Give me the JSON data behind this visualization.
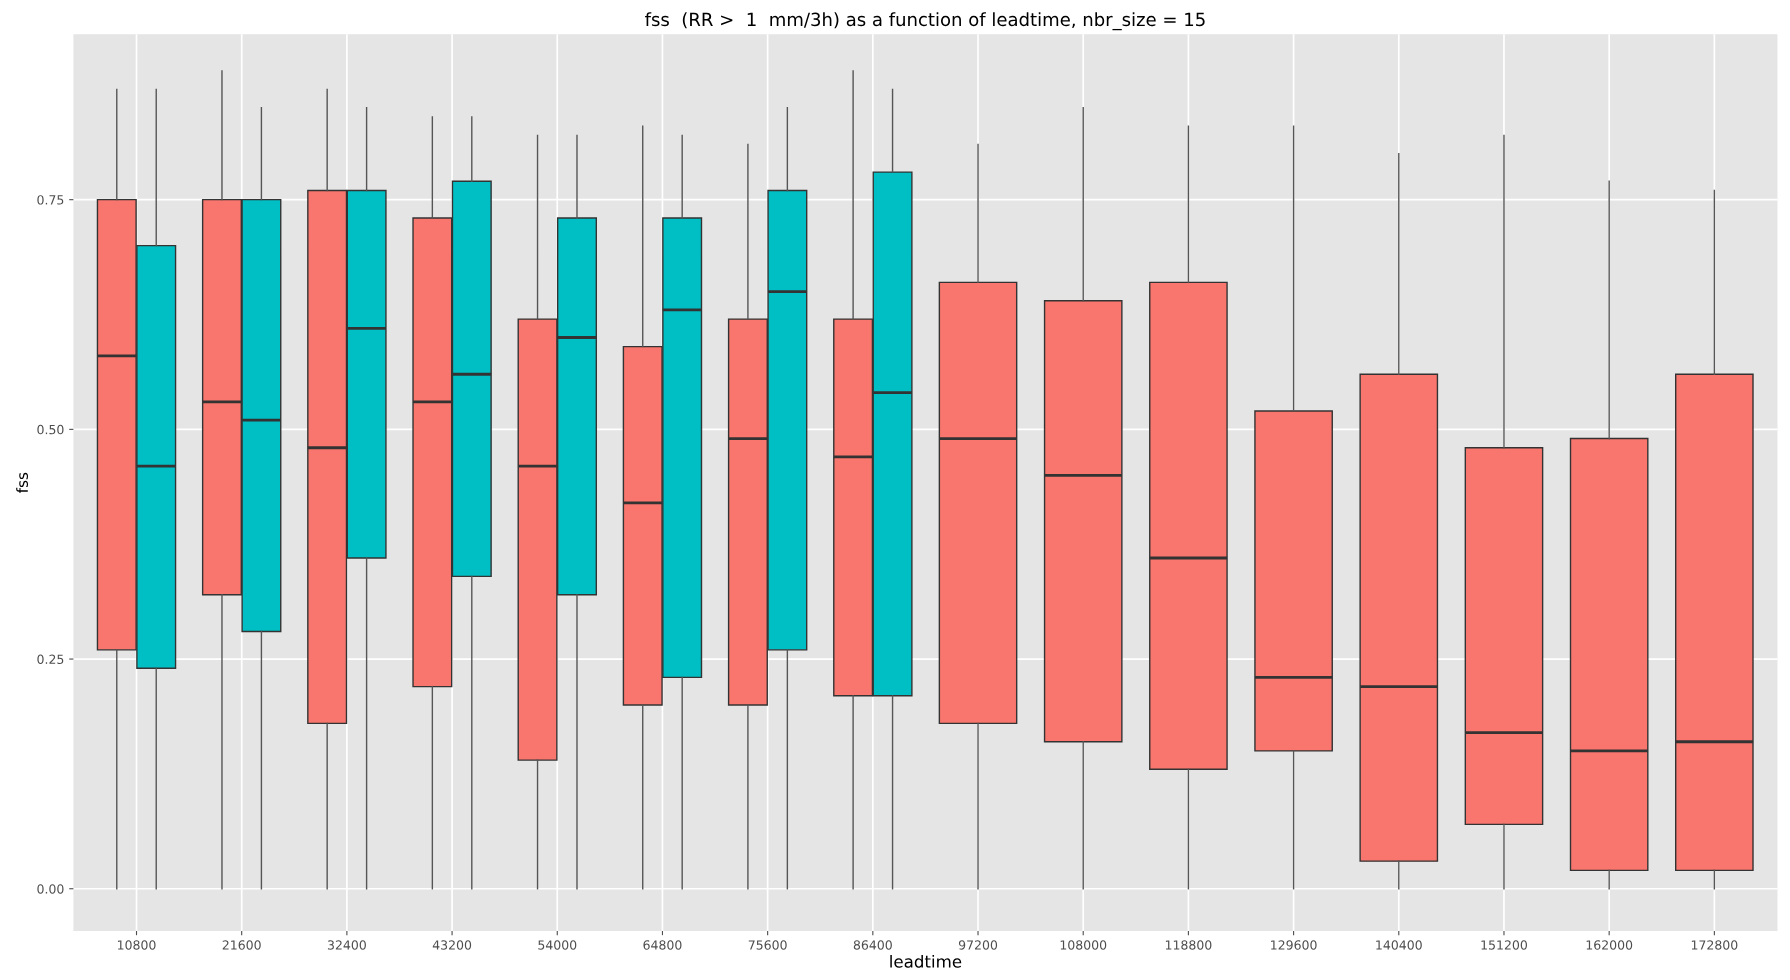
{
  "chart_data": {
    "type": "box",
    "title": "fss  (RR >  1  mm/3h) as a function of leadtime, nbr_size = 15",
    "xlabel": "leadtime",
    "ylabel": "fss",
    "categories": [
      "10800",
      "21600",
      "32400",
      "43200",
      "54000",
      "64800",
      "75600",
      "86400",
      "97200",
      "108000",
      "118800",
      "129600",
      "140400",
      "151200",
      "162000",
      "172800"
    ],
    "ylim": [
      -0.046,
      0.93
    ],
    "yticks": [
      {
        "value": 0,
        "label": "0.00"
      },
      {
        "value": 0.25,
        "label": "0.25"
      },
      {
        "value": 0.5,
        "label": "0.50"
      },
      {
        "value": 0.75,
        "label": "0.75"
      }
    ],
    "grid": true,
    "legend": false,
    "series": [
      {
        "color": "#f8766d",
        "boxes": [
          {
            "low": 0,
            "q1": 0.26,
            "median": 0.58,
            "q3": 0.75,
            "high": 0.87
          },
          {
            "low": 0,
            "q1": 0.32,
            "median": 0.53,
            "q3": 0.75,
            "high": 0.89
          },
          {
            "low": 0,
            "q1": 0.18,
            "median": 0.48,
            "q3": 0.76,
            "high": 0.87
          },
          {
            "low": 0,
            "q1": 0.22,
            "median": 0.53,
            "q3": 0.73,
            "high": 0.84
          },
          {
            "low": 0,
            "q1": 0.14,
            "median": 0.46,
            "q3": 0.62,
            "high": 0.82
          },
          {
            "low": 0,
            "q1": 0.2,
            "median": 0.42,
            "q3": 0.59,
            "high": 0.83
          },
          {
            "low": 0,
            "q1": 0.2,
            "median": 0.49,
            "q3": 0.62,
            "high": 0.81
          },
          {
            "low": 0,
            "q1": 0.21,
            "median": 0.47,
            "q3": 0.62,
            "high": 0.89
          },
          {
            "low": 0,
            "q1": 0.18,
            "median": 0.49,
            "q3": 0.66,
            "high": 0.81
          },
          {
            "low": 0,
            "q1": 0.16,
            "median": 0.45,
            "q3": 0.64,
            "high": 0.85
          },
          {
            "low": 0,
            "q1": 0.13,
            "median": 0.36,
            "q3": 0.66,
            "high": 0.83
          },
          {
            "low": 0,
            "q1": 0.15,
            "median": 0.23,
            "q3": 0.52,
            "high": 0.83
          },
          {
            "low": 0,
            "q1": 0.03,
            "median": 0.22,
            "q3": 0.56,
            "high": 0.8
          },
          {
            "low": 0,
            "q1": 0.07,
            "median": 0.17,
            "q3": 0.48,
            "high": 0.82
          },
          {
            "low": 0,
            "q1": 0.02,
            "median": 0.15,
            "q3": 0.49,
            "high": 0.77
          },
          {
            "low": 0,
            "q1": 0.02,
            "median": 0.16,
            "q3": 0.56,
            "high": 0.76
          }
        ]
      },
      {
        "color": "#00bfc4",
        "boxes": [
          {
            "low": 0,
            "q1": 0.24,
            "median": 0.46,
            "q3": 0.7,
            "high": 0.87
          },
          {
            "low": 0,
            "q1": 0.28,
            "median": 0.51,
            "q3": 0.75,
            "high": 0.85
          },
          {
            "low": 0,
            "q1": 0.36,
            "median": 0.61,
            "q3": 0.76,
            "high": 0.85
          },
          {
            "low": 0,
            "q1": 0.34,
            "median": 0.56,
            "q3": 0.77,
            "high": 0.84
          },
          {
            "low": 0,
            "q1": 0.32,
            "median": 0.6,
            "q3": 0.73,
            "high": 0.82
          },
          {
            "low": 0,
            "q1": 0.23,
            "median": 0.63,
            "q3": 0.73,
            "high": 0.82
          },
          {
            "low": 0,
            "q1": 0.26,
            "median": 0.65,
            "q3": 0.76,
            "high": 0.85
          },
          {
            "low": 0,
            "q1": 0.21,
            "median": 0.54,
            "q3": 0.78,
            "high": 0.87
          },
          null,
          null,
          null,
          null,
          null,
          null,
          null,
          null
        ]
      }
    ]
  }
}
